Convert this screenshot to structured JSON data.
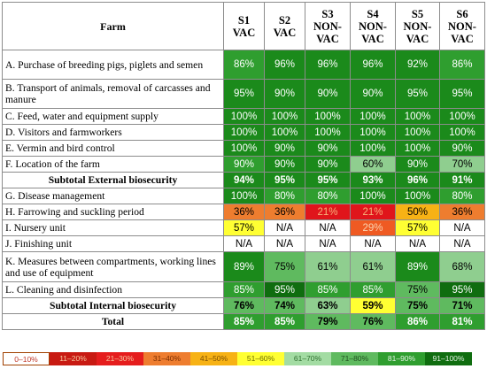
{
  "header": {
    "farm": "Farm",
    "columns": [
      {
        "line1": "S1",
        "line2": "VAC"
      },
      {
        "line1": "S2",
        "line2": "VAC"
      },
      {
        "line1": "S3",
        "line2": "NON-VAC"
      },
      {
        "line1": "S4",
        "line2": "NON-VAC"
      },
      {
        "line1": "S5",
        "line2": "NON-VAC"
      },
      {
        "line1": "S6",
        "line2": "NON-VAC"
      }
    ]
  },
  "rows": [
    {
      "label": "A. Purchase of breeding pigs, piglets and semen",
      "values": [
        "86%",
        "96%",
        "96%",
        "96%",
        "92%",
        "86%"
      ],
      "colors": [
        "#2f9e2f",
        "#1b8a1b",
        "#1b8a1b",
        "#1b8a1b",
        "#1b8a1b",
        "#2f9e2f"
      ]
    },
    {
      "label": "B. Transport of animals, removal of carcasses and manure",
      "values": [
        "95%",
        "90%",
        "90%",
        "90%",
        "95%",
        "95%"
      ],
      "colors": [
        "#1b8a1b",
        "#1b8a1b",
        "#1b8a1b",
        "#1b8a1b",
        "#1b8a1b",
        "#1b8a1b"
      ]
    },
    {
      "label": "C. Feed, water and equipment supply",
      "values": [
        "100%",
        "100%",
        "100%",
        "100%",
        "100%",
        "100%"
      ],
      "colors": [
        "#1b8a1b",
        "#1b8a1b",
        "#1b8a1b",
        "#1b8a1b",
        "#1b8a1b",
        "#1b8a1b"
      ]
    },
    {
      "label": "D. Visitors and farmworkers",
      "values": [
        "100%",
        "100%",
        "100%",
        "100%",
        "100%",
        "100%"
      ],
      "colors": [
        "#1b8a1b",
        "#1b8a1b",
        "#1b8a1b",
        "#1b8a1b",
        "#1b8a1b",
        "#1b8a1b"
      ]
    },
    {
      "label": "E. Vermin and bird control",
      "values": [
        "100%",
        "90%",
        "90%",
        "100%",
        "100%",
        "90%"
      ],
      "colors": [
        "#1b8a1b",
        "#1b8a1b",
        "#1b8a1b",
        "#1b8a1b",
        "#1b8a1b",
        "#1b8a1b"
      ]
    },
    {
      "label": "F. Location of the farm",
      "values": [
        "90%",
        "90%",
        "90%",
        "60%",
        "90%",
        "70%"
      ],
      "colors": [
        "#2f9e2f",
        "#1b8a1b",
        "#1b8a1b",
        "#8fce8f",
        "#1b8a1b",
        "#8fce8f"
      ]
    },
    {
      "label": "Subtotal External biosecurity",
      "sub": true,
      "values": [
        "94%",
        "95%",
        "95%",
        "93%",
        "96%",
        "91%"
      ],
      "colors": [
        "#1b8a1b",
        "#1b8a1b",
        "#1b8a1b",
        "#1b8a1b",
        "#1b8a1b",
        "#1b8a1b"
      ]
    },
    {
      "label": "G. Disease management",
      "values": [
        "100%",
        "80%",
        "80%",
        "100%",
        "100%",
        "80%"
      ],
      "colors": [
        "#1b8a1b",
        "#2f9e2f",
        "#2f9e2f",
        "#1b8a1b",
        "#1b8a1b",
        "#2f9e2f"
      ]
    },
    {
      "label": "H. Farrowing and suckling period",
      "values": [
        "36%",
        "36%",
        "21%",
        "21%",
        "50%",
        "36%"
      ],
      "colors": [
        "#ee7d2f",
        "#ee7d2f",
        "#e0151b",
        "#e0151b",
        "#f7b215",
        "#ee7d2f"
      ]
    },
    {
      "label": "I. Nursery unit",
      "values": [
        "57%",
        "N/A",
        "N/A",
        "29%",
        "57%",
        "N/A"
      ],
      "colors": [
        "#ffff33",
        "#ffffff",
        "#ffffff",
        "#ef5a22",
        "#ffff33",
        "#ffffff"
      ]
    },
    {
      "label": "J. Finishing unit",
      "values": [
        "N/A",
        "N/A",
        "N/A",
        "N/A",
        "N/A",
        "N/A"
      ],
      "colors": [
        "#ffffff",
        "#ffffff",
        "#ffffff",
        "#ffffff",
        "#ffffff",
        "#ffffff"
      ]
    },
    {
      "label": "K. Measures between compartments, working lines and use of equipment",
      "values": [
        "89%",
        "75%",
        "61%",
        "61%",
        "89%",
        "68%"
      ],
      "colors": [
        "#1b8a1b",
        "#5fba5f",
        "#8fce8f",
        "#8fce8f",
        "#1b8a1b",
        "#8fce8f"
      ]
    },
    {
      "label": "L. Cleaning and disinfection",
      "values": [
        "85%",
        "95%",
        "85%",
        "85%",
        "75%",
        "95%"
      ],
      "colors": [
        "#2f9e2f",
        "#0f6d0f",
        "#2f9e2f",
        "#2f9e2f",
        "#5fba5f",
        "#0f6d0f"
      ]
    },
    {
      "label": "Subtotal Internal biosecurity",
      "sub": true,
      "values": [
        "76%",
        "74%",
        "63%",
        "59%",
        "75%",
        "71%"
      ],
      "colors": [
        "#5fba5f",
        "#5fba5f",
        "#8fce8f",
        "#ffff33",
        "#5fba5f",
        "#5fba5f"
      ]
    },
    {
      "label": "Total",
      "sub": true,
      "values": [
        "85%",
        "85%",
        "79%",
        "76%",
        "86%",
        "81%"
      ],
      "colors": [
        "#2f9e2f",
        "#2f9e2f",
        "#5fba5f",
        "#5fba5f",
        "#2f9e2f",
        "#2f9e2f"
      ]
    }
  ],
  "legend": [
    {
      "label": "0–10%",
      "color": "#ffffff",
      "text_color": "#c0392b",
      "border": "#a04000"
    },
    {
      "label": "11–20%",
      "color": "#c81a12",
      "text_color": "#f7c9a0"
    },
    {
      "label": "21–30%",
      "color": "#e51d1d",
      "text_color": "#f7c9a0"
    },
    {
      "label": "31–40%",
      "color": "#ee7d2f",
      "text_color": "#7a2d00"
    },
    {
      "label": "41–50%",
      "color": "#f7b215",
      "text_color": "#7a4d00"
    },
    {
      "label": "51–60%",
      "color": "#ffff33",
      "text_color": "#6d6d00"
    },
    {
      "label": "61–70%",
      "color": "#a3dca3",
      "text_color": "#2f6f2f"
    },
    {
      "label": "71–80%",
      "color": "#5fba5f",
      "text_color": "#1f4f1f"
    },
    {
      "label": "81–90%",
      "color": "#2f9e2f",
      "text_color": "#e6f5e6"
    },
    {
      "label": "91–100%",
      "color": "#0f6d0f",
      "text_color": "#e6f5e6"
    }
  ]
}
